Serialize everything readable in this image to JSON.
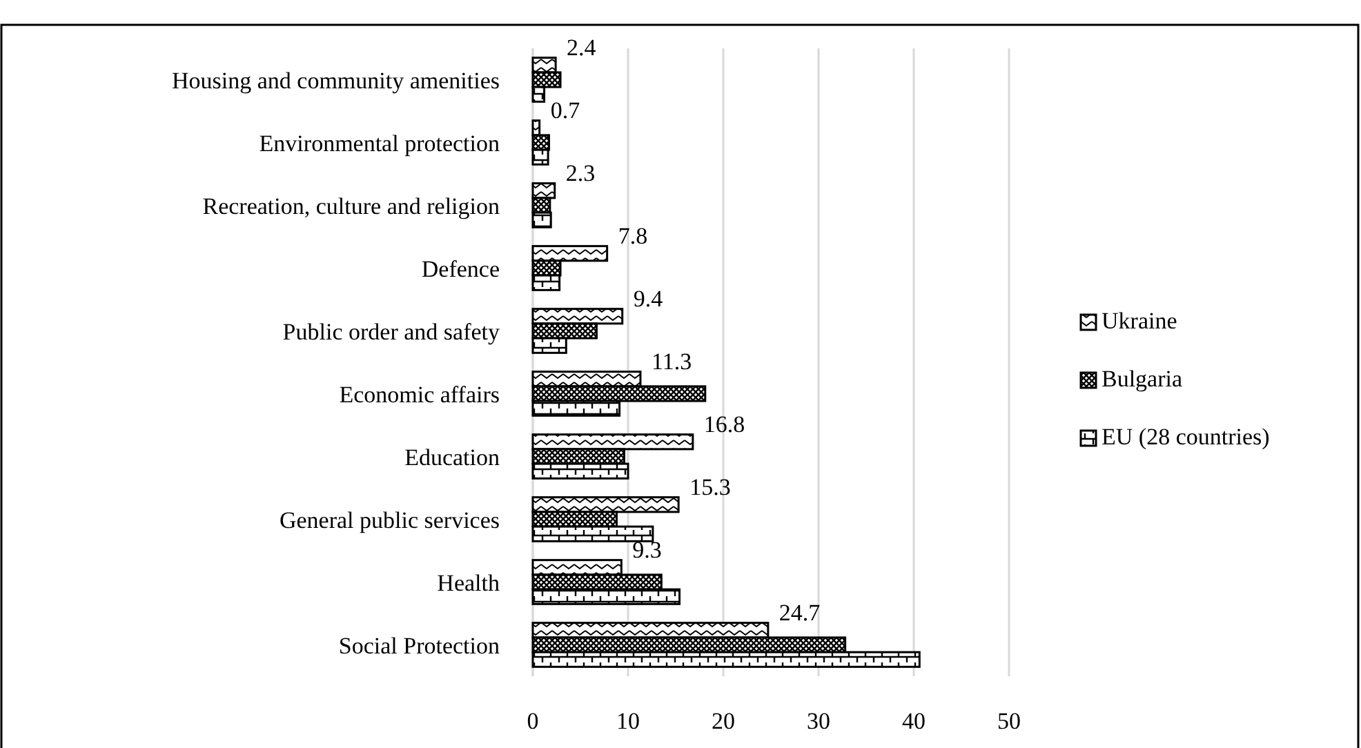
{
  "chart_data": {
    "type": "bar",
    "orientation": "horizontal",
    "categories": [
      "Housing and community amenities",
      "Environmental protection",
      "Recreation, culture and religion",
      "Defence",
      "Public order and safety",
      "Economic affairs",
      "Education",
      "General public services",
      "Health",
      "Social Protection"
    ],
    "series": [
      {
        "name": "Ukraine",
        "color": "#000000",
        "values": [
          2.4,
          0.7,
          2.3,
          7.8,
          9.4,
          11.3,
          16.8,
          15.3,
          9.3,
          24.7
        ],
        "value_labels": [
          "2.4",
          "0.7",
          "2.3",
          "7.8",
          "9.4",
          "11.3",
          "16.8",
          "15.3",
          "9.3",
          "24.7"
        ]
      },
      {
        "name": "Bulgaria",
        "color": "#000000",
        "values": [
          2.9,
          1.7,
          1.8,
          2.9,
          6.7,
          18.1,
          9.6,
          8.8,
          13.5,
          32.8
        ]
      },
      {
        "name": "EU (28 countries)",
        "color": "#000000",
        "values": [
          1.2,
          1.6,
          1.9,
          2.8,
          3.5,
          9.1,
          10,
          12.6,
          15.4,
          40.6
        ]
      }
    ],
    "xlim": [
      0,
      50
    ],
    "xticks": [
      0,
      10,
      20,
      30,
      40,
      50
    ],
    "grid": "x",
    "legend": "right"
  }
}
